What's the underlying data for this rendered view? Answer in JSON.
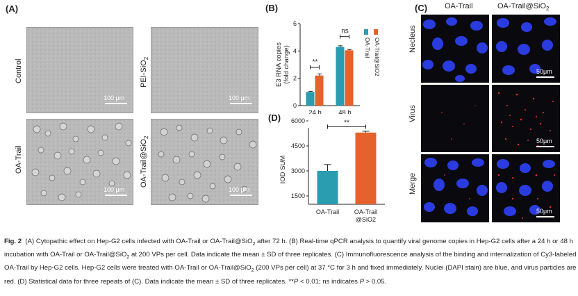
{
  "panel_a": {
    "letter": "(A)",
    "rows": [
      "Control",
      "OA-Trail"
    ],
    "right_labels": [
      "PEI-SiO",
      "OA-Trail@SiO"
    ],
    "subscript": "2",
    "scale_text": "100 μm"
  },
  "panel_b": {
    "letter": "(B)",
    "legend": [
      "OA-Trail",
      "OA-Trail@SiO2"
    ],
    "sig_24h": "**",
    "sig_48h": "ns"
  },
  "panel_c": {
    "letter": "(C)",
    "col_headers": [
      "OA-Trail",
      "OA-Trail@SiO"
    ],
    "subscript": "2",
    "row_labels": [
      "Necleus",
      "Virus",
      "Merge"
    ],
    "scale_text": "50μm"
  },
  "panel_d": {
    "letter": "(D)",
    "sig": "**"
  },
  "colors": {
    "teal": "#2a9db0",
    "orange": "#e5622c",
    "nucleus_blue": "#2a3ce0",
    "virus_red": "#e0302a"
  },
  "chart_data": [
    {
      "type": "bar",
      "panel": "B",
      "categories": [
        "24 h",
        "48 h"
      ],
      "series": [
        {
          "name": "OA-Trail",
          "values": [
            1.0,
            4.3
          ],
          "errors": [
            0.05,
            0.08
          ]
        },
        {
          "name": "OA-Trail@SiO2",
          "values": [
            2.2,
            4.05
          ],
          "errors": [
            0.12,
            0.06
          ]
        }
      ],
      "ylabel": "E3 RNA copies (fold change)",
      "ylim": [
        0,
        6
      ],
      "yticks": [
        0,
        2,
        4,
        6
      ],
      "legend_position": "top-right, vertical"
    },
    {
      "type": "bar",
      "panel": "D",
      "categories": [
        "OA-Trail",
        "OA-Trail @SiO2"
      ],
      "values": [
        3000,
        5300
      ],
      "errors": [
        380,
        80
      ],
      "bar_colors": [
        "#2a9db0",
        "#e5622c"
      ],
      "ylabel": "IOD SUM",
      "ylim": [
        1000,
        6000
      ],
      "yticks": [
        1500,
        3000,
        4500,
        6000
      ]
    }
  ],
  "caption": {
    "fig": "Fig. 2",
    "text1": "(A) Cytopathic effect on Hep-G2 cells infected with OA-Trail or OA-Trail@SiO",
    "text2": " after 72 h. (B) Real-time qPCR analysis to quantify viral genome copies in Hep-G2 cells after a 24 h or 48 h incubation with OA-Trail or OA-Trail@SiO",
    "text3": " at 200 VPs per cell. Data indicate the mean ± SD of three replicates. (C) Immunofluorescence analysis of the binding and internalization of Cy3-labeled OA-Trail by Hep-G2 cells. Hep-G2 cells were treated with OA-Trail or OA-Trail@SiO",
    "text4": " (200 VPs per cell) at 37 °C for 3 h and fixed immediately. Nuclei (DAPI stain) are blue, and virus particles are red. (D) Statistical data for three repeats of (C). Data indicate the mean ± SD of three replicates. **",
    "p1": "P",
    "text5": " < 0.01; ns indicates ",
    "p2": "P",
    "text6": " > 0.05.",
    "sub": "2"
  }
}
